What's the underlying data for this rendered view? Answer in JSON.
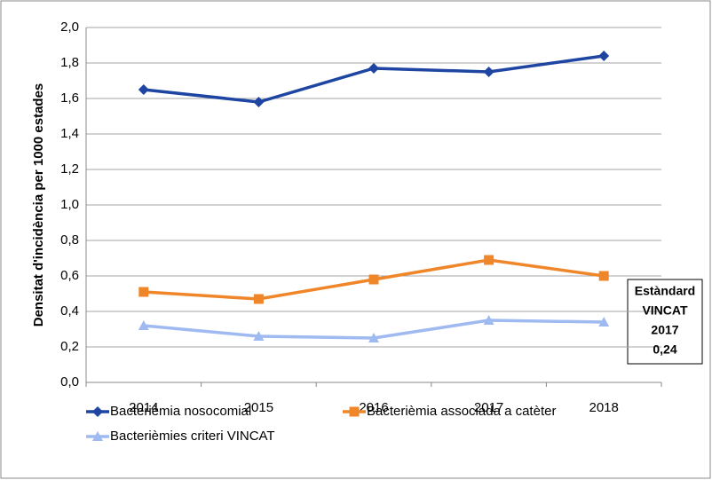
{
  "chart_data": {
    "type": "line",
    "y_label": "Densitat d'incidència per 1000 estades",
    "categories": [
      "2014",
      "2015",
      "2016",
      "2017",
      "2018"
    ],
    "series": [
      {
        "name": "Bacterièmia nosocomial",
        "color": "#1f45a3",
        "marker": "diamond",
        "values": [
          1.65,
          1.58,
          1.77,
          1.75,
          1.84
        ]
      },
      {
        "name": "Bacterièmia associada a catèter",
        "color": "#f0862a",
        "marker": "square",
        "values": [
          0.51,
          0.47,
          0.58,
          0.69,
          0.6
        ]
      },
      {
        "name": "Bacterièmies criteri VINCAT",
        "color": "#9fbaf0",
        "marker": "triangle",
        "values": [
          0.32,
          0.26,
          0.25,
          0.35,
          0.34
        ]
      }
    ],
    "ylim": [
      0,
      2
    ],
    "yticks": [
      {
        "value": 0,
        "label": "0,0"
      },
      {
        "value": 0.2,
        "label": "0,2"
      },
      {
        "value": 0.4,
        "label": "0,4"
      },
      {
        "value": 0.6,
        "label": "0,6"
      },
      {
        "value": 0.8,
        "label": "0,8"
      },
      {
        "value": 1,
        "label": "1,0"
      },
      {
        "value": 1.2,
        "label": "1,2"
      },
      {
        "value": 1.4,
        "label": "1,4"
      },
      {
        "value": 1.6,
        "label": "1,6"
      },
      {
        "value": 1.8,
        "label": "1,8"
      },
      {
        "value": 2,
        "label": "2,0"
      }
    ],
    "grid": true,
    "annotation": [
      "Estàndard",
      "VINCAT",
      "2017",
      "0,24"
    ]
  }
}
